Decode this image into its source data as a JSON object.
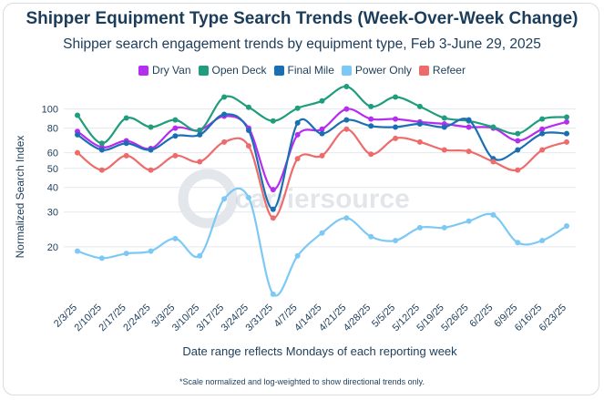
{
  "chart_data": {
    "type": "line",
    "title": "Shipper Equipment Type Search Trends (Week-Over-Week Change)",
    "subtitle": "Shipper search engagement trends by equipment type, Feb 3-June 29, 2025",
    "xlabel": "Date range reflects Mondays of each reporting week",
    "ylabel": "Normalized Search Index",
    "yscale": "log",
    "ylim": [
      11,
      130
    ],
    "yticks": [
      20,
      30,
      40,
      50,
      60,
      80,
      100
    ],
    "grid": true,
    "legend_position": "top-center",
    "footnote": "*Scale normalized and log-weighted to show directional trends only.",
    "watermark": "carriersource",
    "x": [
      "2/3/25",
      "2/10/25",
      "2/17/25",
      "2/24/25",
      "3/3/25",
      "3/10/25",
      "3/17/25",
      "3/24/25",
      "3/31/25",
      "4/7/25",
      "4/14/25",
      "4/21/25",
      "4/28/25",
      "5/5/25",
      "5/12/25",
      "5/19/25",
      "5/26/25",
      "6/2/25",
      "6/9/25",
      "6/16/25",
      "6/23/25"
    ],
    "series": [
      {
        "name": "Dry Van",
        "color": "#b52df0",
        "values": [
          77,
          64,
          69,
          63,
          80,
          78,
          92,
          80,
          39,
          74,
          79,
          100,
          89,
          89,
          86,
          84,
          81,
          80,
          69,
          79,
          86
        ]
      },
      {
        "name": "Open Deck",
        "color": "#1f9d7c",
        "values": [
          93,
          67,
          90,
          81,
          88,
          78,
          115,
          102,
          87,
          101,
          110,
          130,
          103,
          115,
          103,
          90,
          87,
          81,
          75,
          89,
          91
        ]
      },
      {
        "name": "Final Mile",
        "color": "#1a6fb4",
        "values": [
          74,
          62,
          67,
          62,
          73,
          74,
          94,
          78,
          31,
          85,
          75,
          88,
          82,
          81,
          84,
          81,
          88,
          56,
          62,
          75,
          75
        ]
      },
      {
        "name": "Power Only",
        "color": "#7cc9f5",
        "values": [
          19,
          17.5,
          18.5,
          19,
          22,
          18,
          35,
          35.5,
          11.5,
          18,
          23.5,
          28,
          22.5,
          21.5,
          25,
          25,
          27,
          29,
          21,
          21.5,
          25.5
        ]
      },
      {
        "name": "Refeer",
        "color": "#ee6b6b",
        "values": [
          60,
          49,
          58,
          49,
          58,
          54,
          68,
          65,
          28,
          56,
          58,
          79,
          59,
          71,
          68,
          62,
          61,
          54,
          49,
          62,
          68
        ]
      }
    ]
  }
}
